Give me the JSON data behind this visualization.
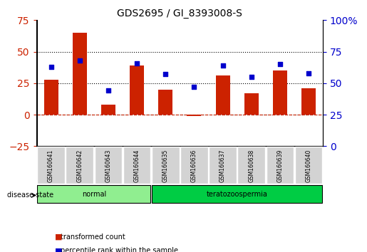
{
  "title": "GDS2695 / GI_8393008-S",
  "samples": [
    "GSM160641",
    "GSM160642",
    "GSM160643",
    "GSM160644",
    "GSM160635",
    "GSM160636",
    "GSM160637",
    "GSM160638",
    "GSM160639",
    "GSM160640"
  ],
  "bar_values": [
    28,
    65,
    8,
    39,
    20,
    -1,
    31,
    17,
    35,
    21
  ],
  "scatter_values": [
    63,
    68,
    44,
    66,
    57,
    47,
    64,
    55,
    65,
    58
  ],
  "groups": [
    {
      "label": "normal",
      "start": 0,
      "end": 4,
      "color": "#90ee90"
    },
    {
      "label": "teratozoospermia",
      "start": 4,
      "end": 10,
      "color": "#00cc44"
    }
  ],
  "bar_color": "#cc2200",
  "scatter_color": "#0000cc",
  "ylim_left": [
    -25,
    75
  ],
  "ylim_right": [
    0,
    100
  ],
  "yticks_left": [
    -25,
    0,
    25,
    50,
    75
  ],
  "yticks_right": [
    0,
    25,
    50,
    75,
    100
  ],
  "hlines": [
    0,
    25,
    50
  ],
  "background_color": "#ffffff",
  "legend_items": [
    {
      "label": "transformed count",
      "color": "#cc2200",
      "marker": "s"
    },
    {
      "label": "percentile rank within the sample",
      "color": "#0000cc",
      "marker": "s"
    }
  ]
}
